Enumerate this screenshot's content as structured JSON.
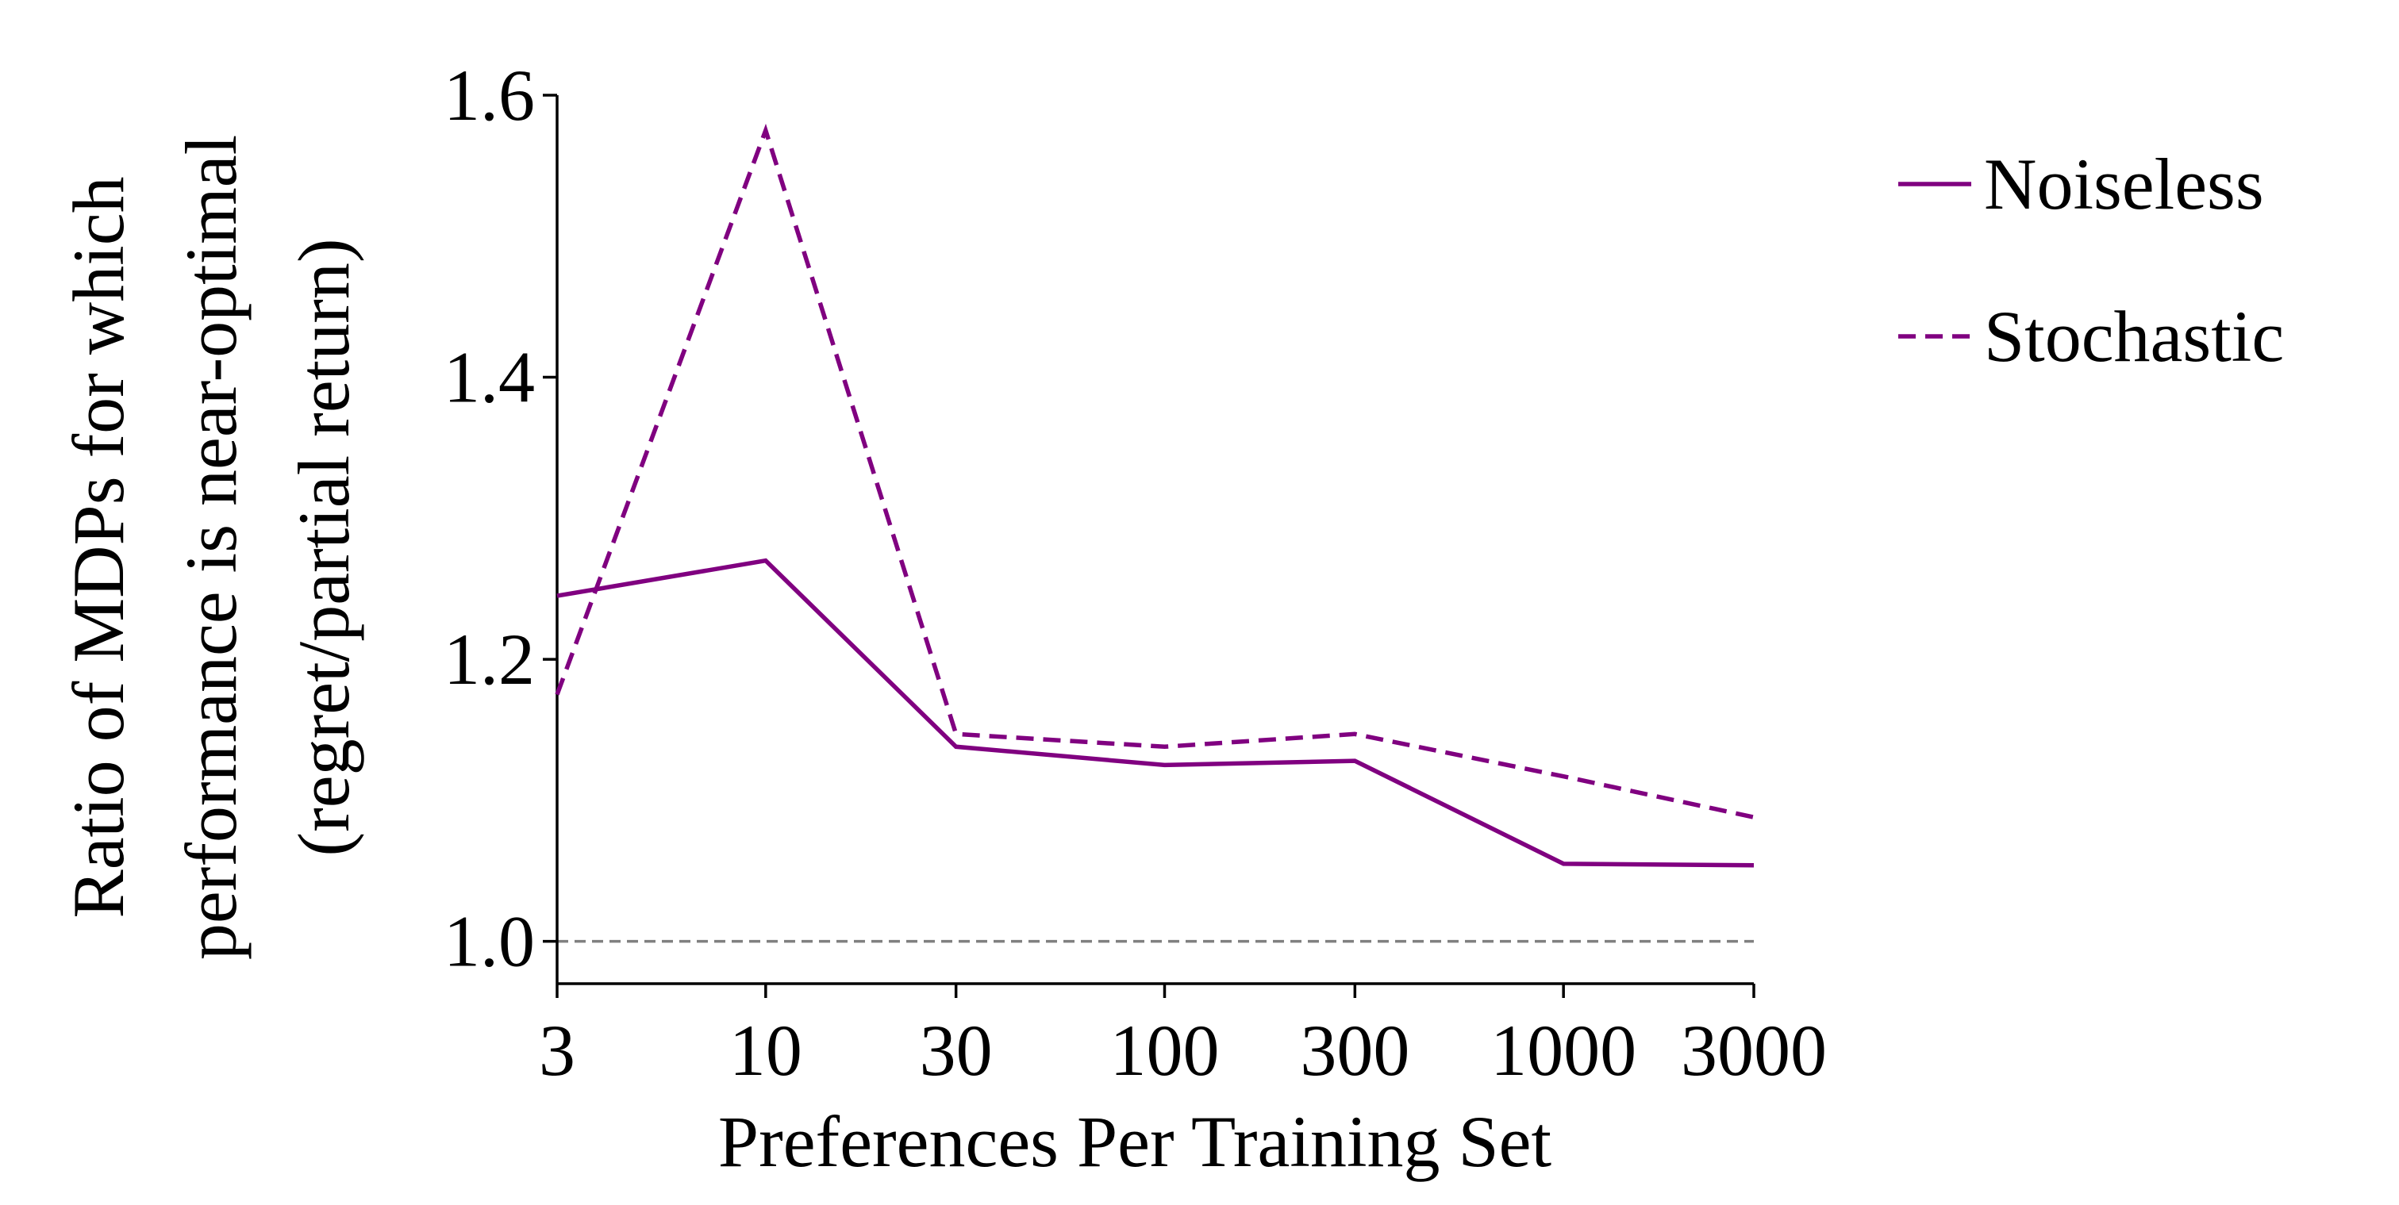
{
  "chart_data": {
    "type": "line",
    "title": "",
    "xlabel": "Preferences Per Training Set",
    "ylabel_lines": [
      "Ratio of MDPs for which",
      "performance is near-optimal",
      "(regret/partial return)"
    ],
    "x_scale": "log",
    "categories": [
      "3",
      "10",
      "30",
      "100",
      "300",
      "1000",
      "3000"
    ],
    "x": [
      3,
      10,
      30,
      100,
      300,
      1000,
      3000
    ],
    "ylim": [
      0.97,
      1.6
    ],
    "yticks": [
      1.0,
      1.2,
      1.4,
      1.6
    ],
    "ytick_labels": [
      "1.0",
      "1.2",
      "1.4",
      "1.6"
    ],
    "series": [
      {
        "name": "Noiseless",
        "values": [
          1.245,
          1.27,
          1.138,
          1.125,
          1.128,
          1.055,
          1.054
        ],
        "color": "#800080",
        "style": "solid"
      },
      {
        "name": "Stochastic",
        "values": [
          1.175,
          1.575,
          1.147,
          1.138,
          1.147,
          1.117,
          1.088
        ],
        "color": "#800080",
        "style": "dashed"
      }
    ],
    "reference_line": {
      "y": 1.0,
      "color": "#808080",
      "style": "dashed"
    },
    "legend_position": "outside-right-top",
    "grid": false
  }
}
